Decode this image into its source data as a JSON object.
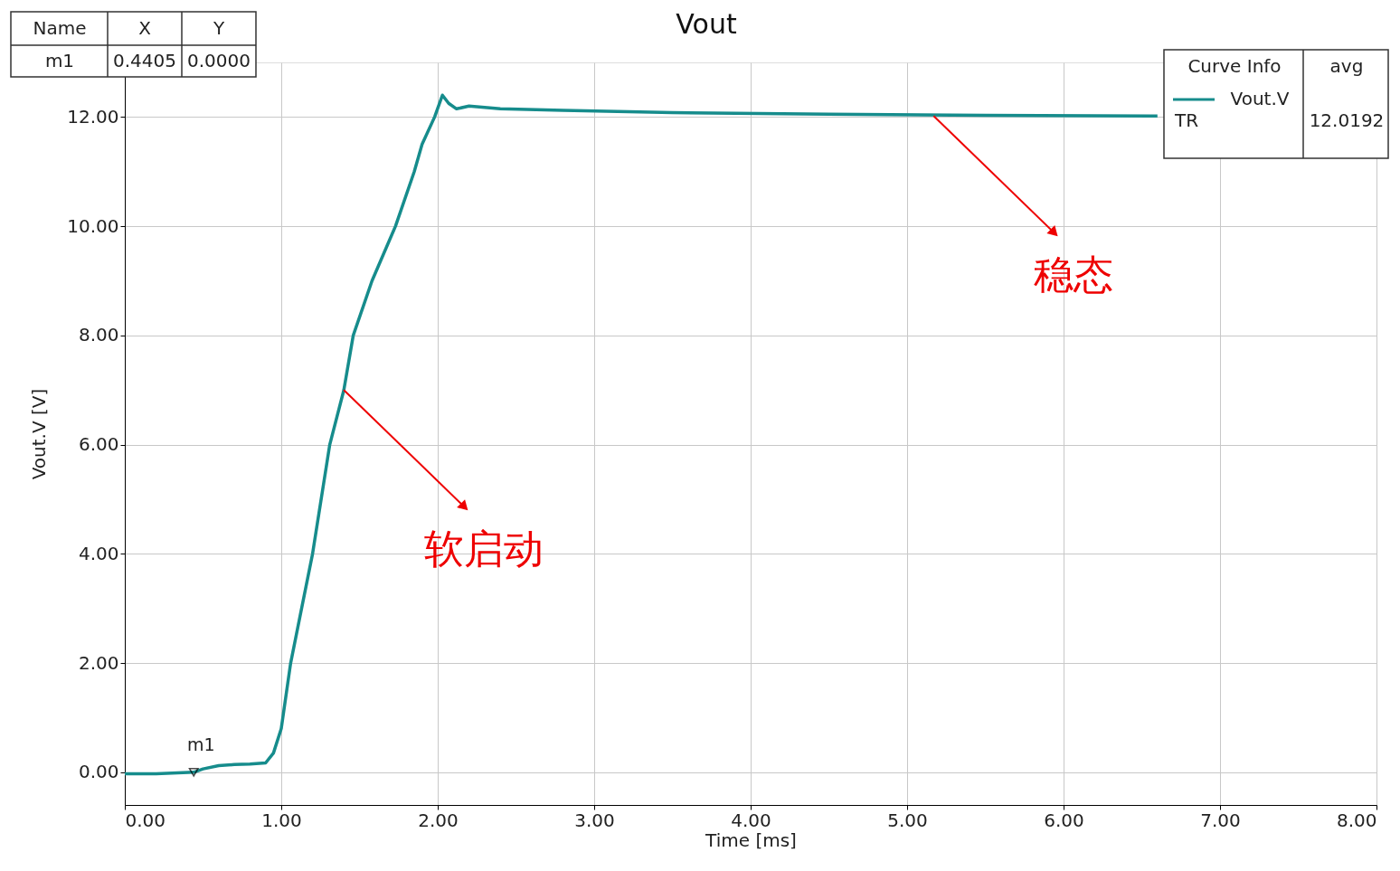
{
  "chart_data": {
    "type": "line",
    "title": "Vout",
    "xlabel": "Time [ms]",
    "ylabel": "Vout.V [V]",
    "x": [
      0,
      0.2,
      0.4405,
      0.5,
      0.6,
      0.7,
      0.8,
      0.9,
      0.95,
      1.0,
      1.06,
      1.13,
      1.2,
      1.31,
      1.4,
      1.46,
      1.58,
      1.73,
      1.85,
      1.9,
      1.98,
      2.03,
      2.07,
      2.12,
      2.2,
      2.4,
      2.8,
      3.5,
      4.5,
      5.5,
      6.6
    ],
    "series": [
      {
        "name": "Vout.V",
        "color": "#168c8c",
        "values": [
          -0.03,
          -0.03,
          0,
          0.06,
          0.12,
          0.14,
          0.15,
          0.17,
          0.35,
          0.8,
          2.0,
          3.0,
          4.0,
          6.0,
          7.0,
          8.0,
          9.0,
          10.0,
          11.0,
          11.5,
          12.0,
          12.4,
          12.25,
          12.15,
          12.2,
          12.15,
          12.12,
          12.08,
          12.05,
          12.03,
          12.02
        ]
      }
    ],
    "xlim": [
      0,
      8
    ],
    "ylim": [
      -0.6,
      13.0
    ],
    "xticks": [
      {
        "value": 0,
        "label": "0.00"
      },
      {
        "value": 1,
        "label": "1.00"
      },
      {
        "value": 2,
        "label": "2.00"
      },
      {
        "value": 3,
        "label": "3.00"
      },
      {
        "value": 4,
        "label": "4.00"
      },
      {
        "value": 5,
        "label": "5.00"
      },
      {
        "value": 6,
        "label": "6.00"
      },
      {
        "value": 7,
        "label": "7.00"
      },
      {
        "value": 8,
        "label": "8.00"
      }
    ],
    "yticks": [
      {
        "value": 0,
        "label": "0.00"
      },
      {
        "value": 2,
        "label": "2.00"
      },
      {
        "value": 4,
        "label": "4.00"
      },
      {
        "value": 6,
        "label": "6.00"
      },
      {
        "value": 8,
        "label": "8.00"
      },
      {
        "value": 10,
        "label": "10.00"
      },
      {
        "value": 12,
        "label": "12.00"
      }
    ],
    "grid": true,
    "legend": "top right",
    "marker": "none",
    "line_style": "solid",
    "annotations": [
      "Name",
      "X",
      "Y",
      "m1",
      "0.4405",
      "0.0000",
      "Curve Info",
      "avg",
      "TR",
      "12.0192",
      {
        "text": "m1",
        "x": 0.4405,
        "y": 0
      },
      {
        "text": "软启动",
        "x": 1.4,
        "y": 7.0
      },
      {
        "text": "稳态",
        "x": 5.17,
        "y": 12.02
      }
    ]
  }
}
